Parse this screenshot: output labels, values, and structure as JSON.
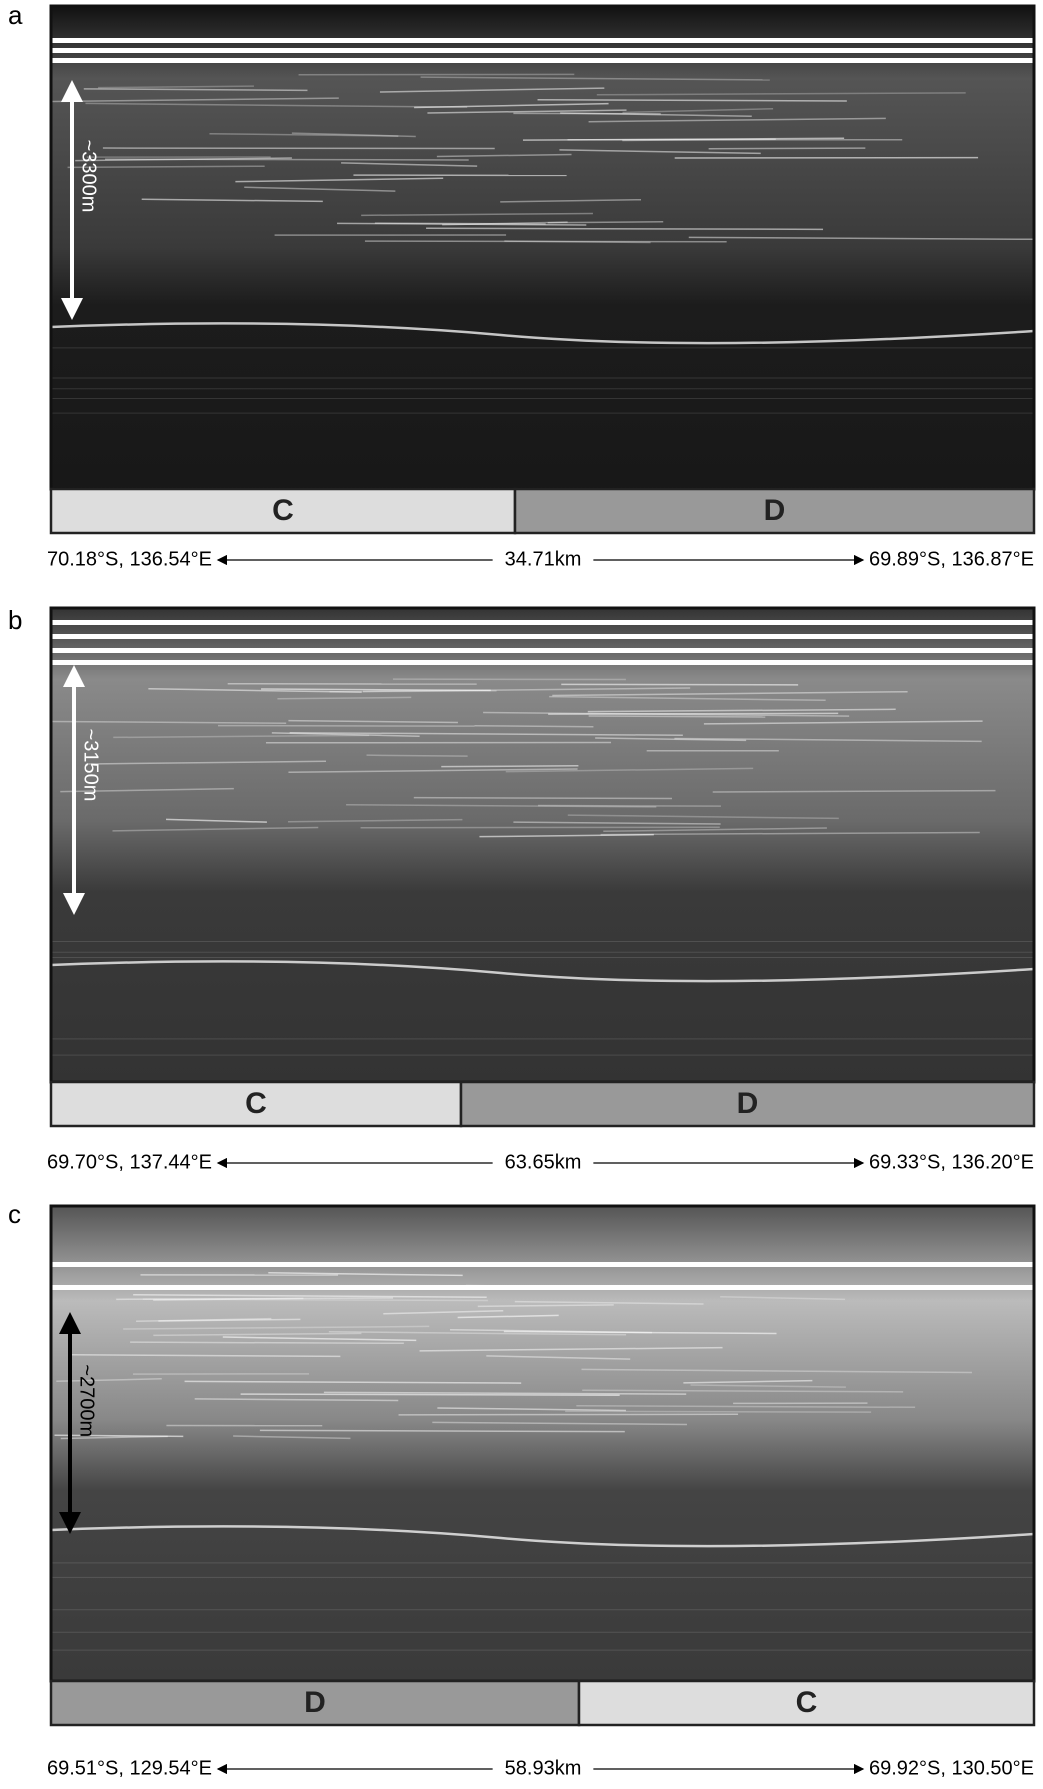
{
  "panels": [
    {
      "label": "a",
      "thickness": "~3300m",
      "segments": [
        "C",
        "D"
      ],
      "left": "70.18°S, 136.54°E",
      "distance": "34.71km",
      "right": "69.89°S, 136.87°E"
    },
    {
      "label": "b",
      "thickness": "~3150m",
      "segments": [
        "C",
        "D"
      ],
      "left": "69.70°S, 137.44°E",
      "distance": "63.65km",
      "right": "69.33°S, 136.20°E"
    },
    {
      "label": "c",
      "thickness": "~2700m",
      "segments": [
        "D",
        "C"
      ],
      "left": "69.51°S, 129.54°E",
      "distance": "58.93km",
      "right": "69.92°S, 130.50°E"
    }
  ]
}
